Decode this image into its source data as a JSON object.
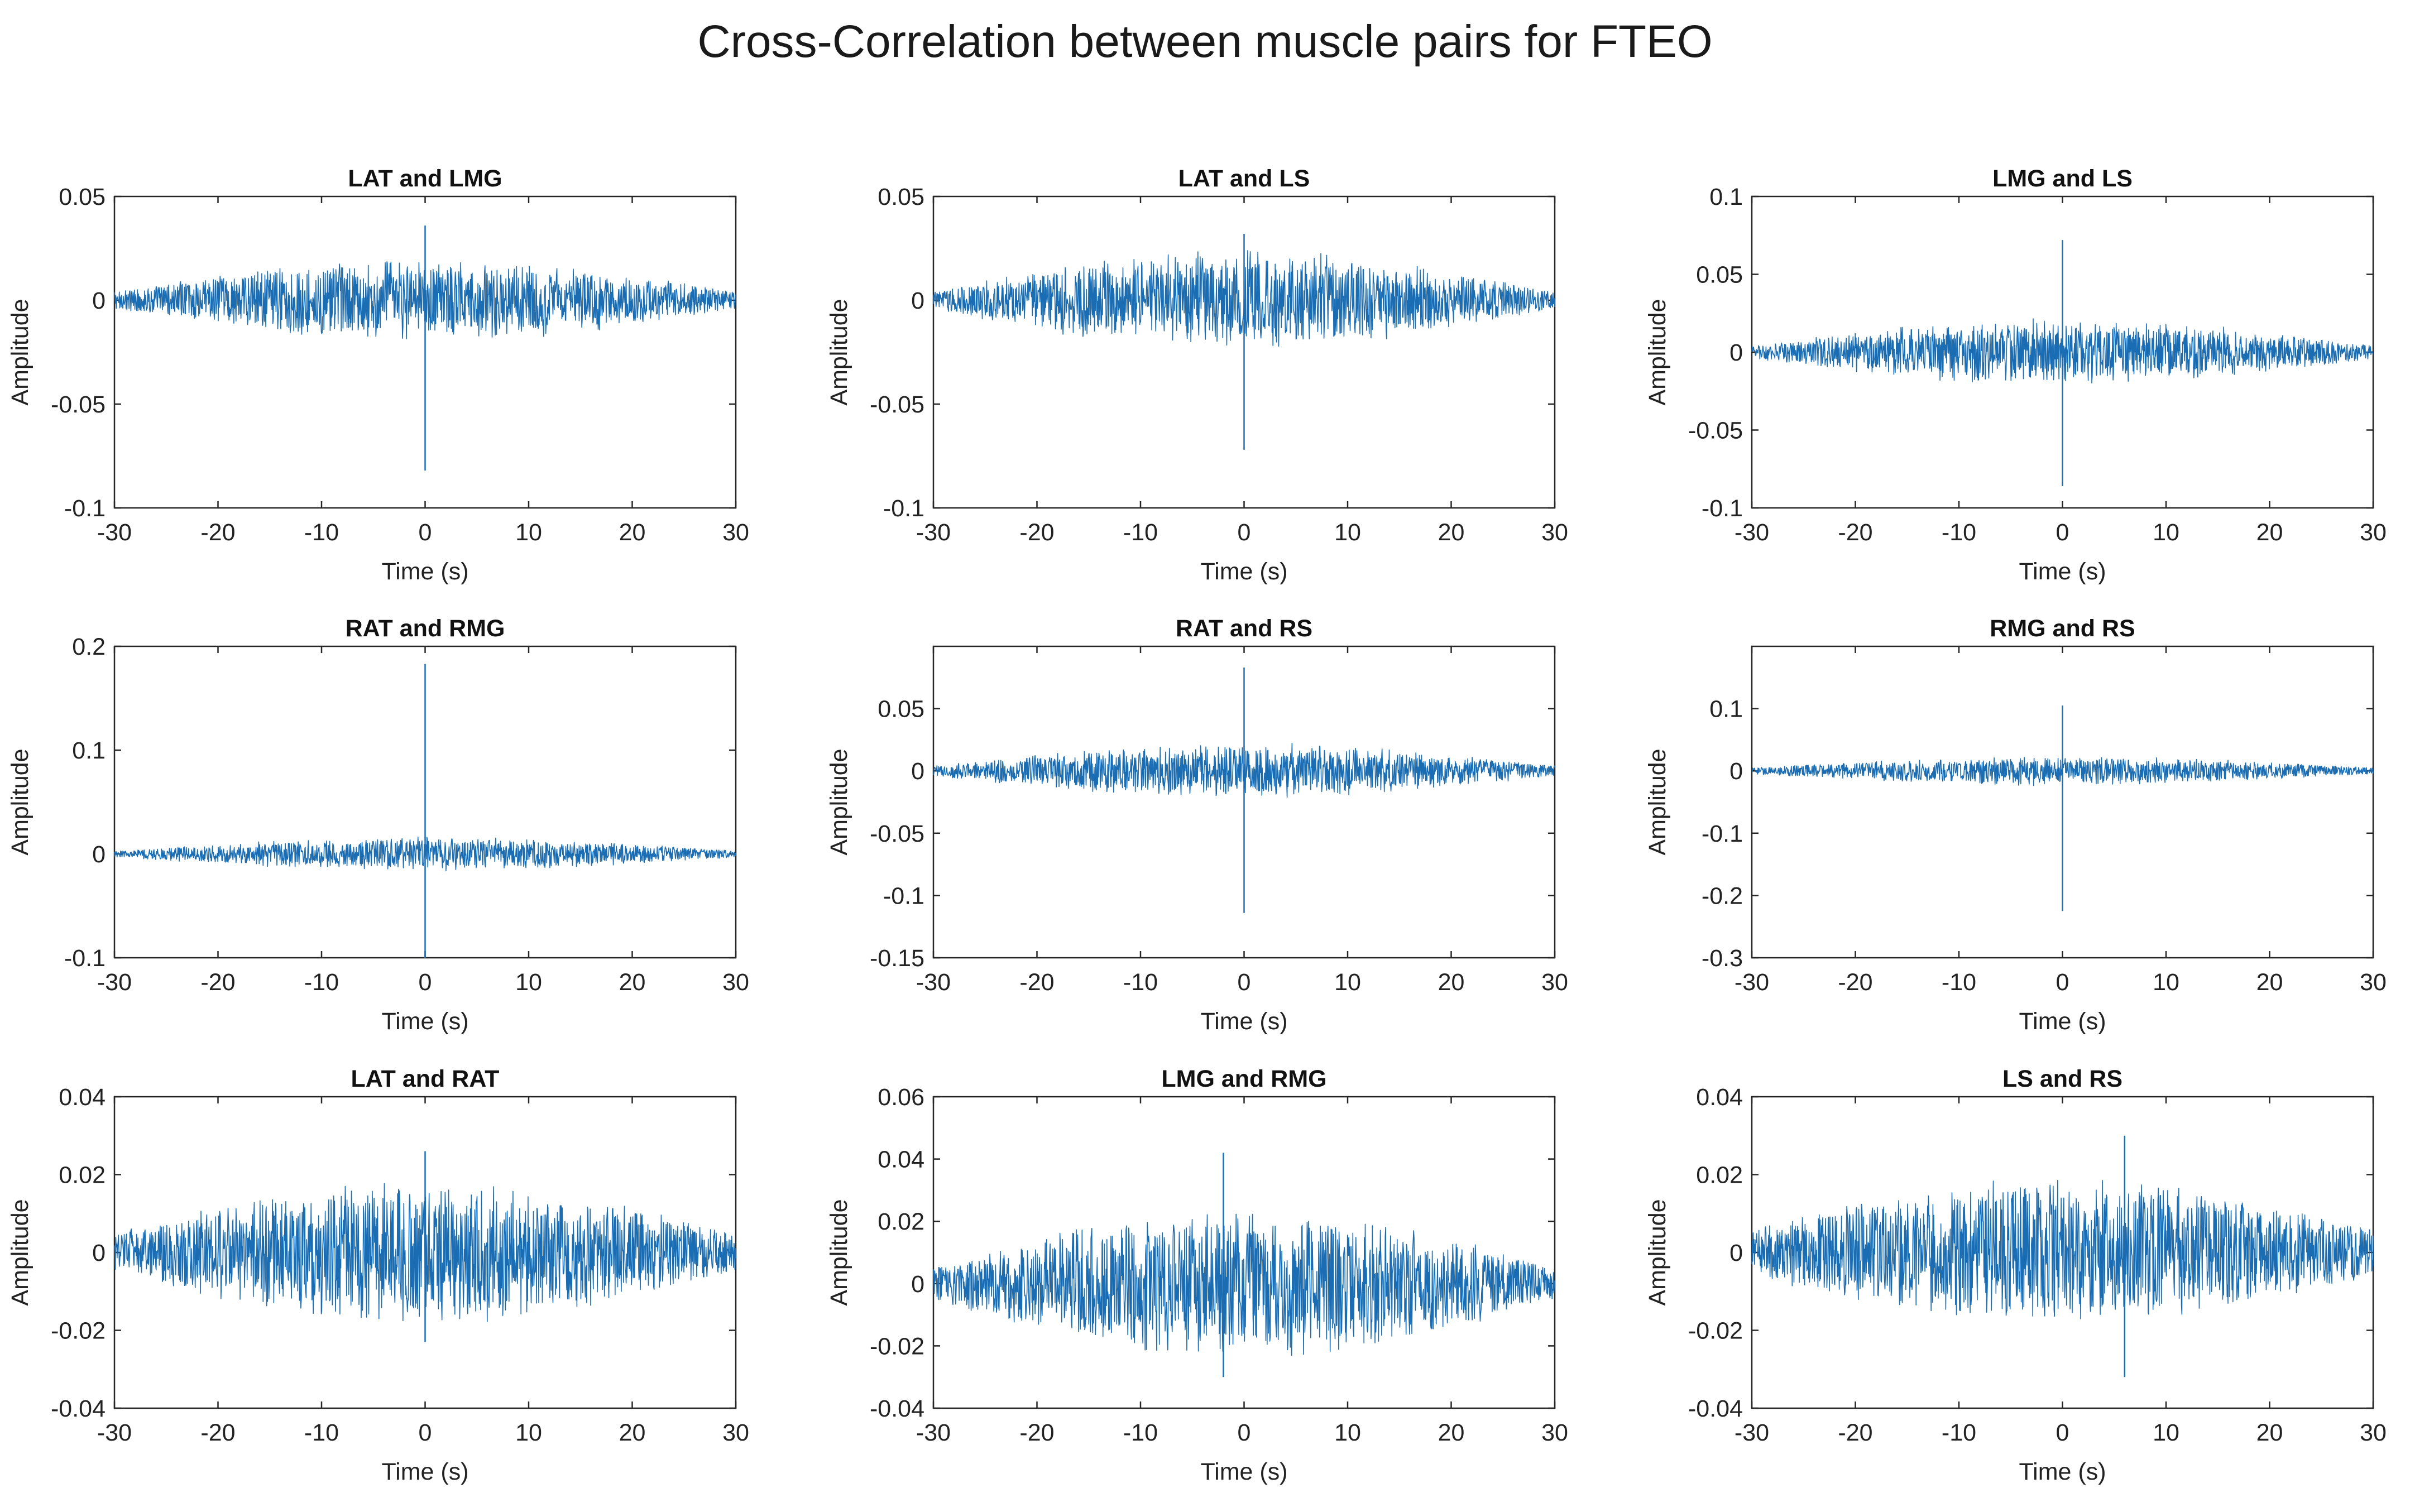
{
  "figure_title": "Cross-Correlation between muscle pairs for FTEO",
  "colors": {
    "signal": "#1a6db3",
    "axis": "#262626",
    "background": "#ffffff"
  },
  "chart_data": [
    {
      "type": "line",
      "title": "LAT and LMG",
      "xlabel": "Time (s)",
      "ylabel": "Amplitude",
      "xlim": [
        -30,
        30
      ],
      "ylim": [
        -0.1,
        0.05
      ],
      "xticks": [
        -30,
        -20,
        -10,
        0,
        10,
        20,
        30
      ],
      "xtick_labels": [
        "-30",
        "-20",
        "-10",
        "0",
        "10",
        "20",
        "30"
      ],
      "yticks": [
        -0.1,
        -0.05,
        0,
        0.05
      ],
      "ytick_labels": [
        "-0.1",
        "-0.05",
        "0",
        "0.05"
      ],
      "envelope_peak": 0.021,
      "envelope_min": 0.004,
      "spike": {
        "x": 0,
        "max": 0.036,
        "min": -0.082
      },
      "series": [
        {
          "name": "Cross-correlation",
          "color": "#1a6db3"
        }
      ]
    },
    {
      "type": "line",
      "title": "LAT and LS",
      "xlabel": "Time (s)",
      "ylabel": "Amplitude",
      "xlim": [
        -30,
        30
      ],
      "ylim": [
        -0.1,
        0.05
      ],
      "xticks": [
        -30,
        -20,
        -10,
        0,
        10,
        20,
        30
      ],
      "xtick_labels": [
        "-30",
        "-20",
        "-10",
        "0",
        "10",
        "20",
        "30"
      ],
      "yticks": [
        -0.1,
        -0.05,
        0,
        0.05
      ],
      "ytick_labels": [
        "-0.1",
        "-0.05",
        "0",
        "0.05"
      ],
      "envelope_peak": 0.025,
      "envelope_min": 0.004,
      "spike": {
        "x": 0,
        "max": 0.032,
        "min": -0.072
      },
      "series": [
        {
          "name": "Cross-correlation",
          "color": "#1a6db3"
        }
      ]
    },
    {
      "type": "line",
      "title": "LMG and LS",
      "xlabel": "Time (s)",
      "ylabel": "Amplitude",
      "xlim": [
        -30,
        30
      ],
      "ylim": [
        -0.1,
        0.1
      ],
      "xticks": [
        -30,
        -20,
        -10,
        0,
        10,
        20,
        30
      ],
      "xtick_labels": [
        "-30",
        "-20",
        "-10",
        "0",
        "10",
        "20",
        "30"
      ],
      "yticks": [
        -0.1,
        -0.05,
        0,
        0.05,
        0.1
      ],
      "ytick_labels": [
        "-0.1",
        "-0.05",
        "0",
        "0.05",
        "0.1"
      ],
      "envelope_peak": 0.022,
      "envelope_min": 0.004,
      "spike": {
        "x": 0,
        "max": 0.072,
        "min": -0.086
      },
      "series": [
        {
          "name": "Cross-correlation",
          "color": "#1a6db3"
        }
      ]
    },
    {
      "type": "line",
      "title": "RAT and RMG",
      "xlabel": "Time (s)",
      "ylabel": "Amplitude",
      "xlim": [
        -30,
        30
      ],
      "ylim": [
        -0.1,
        0.2
      ],
      "xticks": [
        -30,
        -20,
        -10,
        0,
        10,
        20,
        30
      ],
      "xtick_labels": [
        "-30",
        "-20",
        "-10",
        "0",
        "10",
        "20",
        "30"
      ],
      "yticks": [
        -0.1,
        0,
        0.1,
        0.2
      ],
      "ytick_labels": [
        "-0.1",
        "0",
        "0.1",
        "0.2"
      ],
      "envelope_peak": 0.017,
      "envelope_min": 0.003,
      "spike": {
        "x": 0,
        "max": 0.183,
        "min": -0.1
      },
      "series": [
        {
          "name": "Cross-correlation",
          "color": "#1a6db3"
        }
      ]
    },
    {
      "type": "line",
      "title": "RAT and RS",
      "xlabel": "Time (s)",
      "ylabel": "Amplitude",
      "xlim": [
        -30,
        30
      ],
      "ylim": [
        -0.15,
        0.1
      ],
      "xticks": [
        -30,
        -20,
        -10,
        0,
        10,
        20,
        30
      ],
      "xtick_labels": [
        "-30",
        "-20",
        "-10",
        "0",
        "10",
        "20",
        "30"
      ],
      "yticks": [
        -0.15,
        -0.1,
        -0.05,
        0,
        0.05
      ],
      "ytick_labels": [
        "-0.15",
        "-0.1",
        "-0.05",
        "0",
        "0.05"
      ],
      "envelope_peak": 0.023,
      "envelope_min": 0.004,
      "spike": {
        "x": 0,
        "max": 0.083,
        "min": -0.114
      },
      "series": [
        {
          "name": "Cross-correlation",
          "color": "#1a6db3"
        }
      ]
    },
    {
      "type": "line",
      "title": "RMG and RS",
      "xlabel": "Time (s)",
      "ylabel": "Amplitude",
      "xlim": [
        -30,
        30
      ],
      "ylim": [
        -0.3,
        0.2
      ],
      "xticks": [
        -30,
        -20,
        -10,
        0,
        10,
        20,
        30
      ],
      "xtick_labels": [
        "-30",
        "-20",
        "-10",
        "0",
        "10",
        "20",
        "30"
      ],
      "yticks": [
        -0.3,
        -0.2,
        -0.1,
        0,
        0.1
      ],
      "ytick_labels": [
        "-0.3",
        "-0.2",
        "-0.1",
        "0",
        "0.1"
      ],
      "envelope_peak": 0.024,
      "envelope_min": 0.005,
      "spike": {
        "x": 0,
        "max": 0.105,
        "min": -0.225
      },
      "series": [
        {
          "name": "Cross-correlation",
          "color": "#1a6db3"
        }
      ]
    },
    {
      "type": "line",
      "title": "LAT and RAT",
      "xlabel": "Time (s)",
      "ylabel": "Amplitude",
      "xlim": [
        -30,
        30
      ],
      "ylim": [
        -0.04,
        0.04
      ],
      "xticks": [
        -30,
        -20,
        -10,
        0,
        10,
        20,
        30
      ],
      "xtick_labels": [
        "-30",
        "-20",
        "-10",
        "0",
        "10",
        "20",
        "30"
      ],
      "yticks": [
        -0.04,
        -0.02,
        0,
        0.02,
        0.04
      ],
      "ytick_labels": [
        "-0.04",
        "-0.02",
        "0",
        "0.02",
        "0.04"
      ],
      "envelope_peak": 0.019,
      "envelope_min": 0.005,
      "spike": {
        "x": 0,
        "max": 0.026,
        "min": -0.023
      },
      "series": [
        {
          "name": "Cross-correlation",
          "color": "#1a6db3"
        }
      ]
    },
    {
      "type": "line",
      "title": "LMG and RMG",
      "xlabel": "Time (s)",
      "ylabel": "Amplitude",
      "xlim": [
        -30,
        30
      ],
      "ylim": [
        -0.04,
        0.06
      ],
      "xticks": [
        -30,
        -20,
        -10,
        0,
        10,
        20,
        30
      ],
      "xtick_labels": [
        "-30",
        "-20",
        "-10",
        "0",
        "10",
        "20",
        "30"
      ],
      "yticks": [
        -0.04,
        -0.02,
        0,
        0.02,
        0.04,
        0.06
      ],
      "ytick_labels": [
        "-0.04",
        "-0.02",
        "0",
        "0.02",
        "0.04",
        "0.06"
      ],
      "envelope_peak": 0.025,
      "envelope_min": 0.005,
      "spike": {
        "x": -2,
        "max": 0.042,
        "min": -0.03
      },
      "series": [
        {
          "name": "Cross-correlation",
          "color": "#1a6db3"
        }
      ]
    },
    {
      "type": "line",
      "title": "LS and RS",
      "xlabel": "Time (s)",
      "ylabel": "Amplitude",
      "xlim": [
        -30,
        30
      ],
      "ylim": [
        -0.04,
        0.04
      ],
      "xticks": [
        -30,
        -20,
        -10,
        0,
        10,
        20,
        30
      ],
      "xtick_labels": [
        "-30",
        "-20",
        "-10",
        "0",
        "10",
        "20",
        "30"
      ],
      "yticks": [
        -0.04,
        -0.02,
        0,
        0.02,
        0.04
      ],
      "ytick_labels": [
        "-0.04",
        "-0.02",
        "0",
        "0.02",
        "0.04"
      ],
      "envelope_peak": 0.02,
      "envelope_min": 0.006,
      "spike": {
        "x": 6,
        "max": 0.03,
        "min": -0.032
      },
      "series": [
        {
          "name": "Cross-correlation",
          "color": "#1a6db3"
        }
      ]
    }
  ]
}
